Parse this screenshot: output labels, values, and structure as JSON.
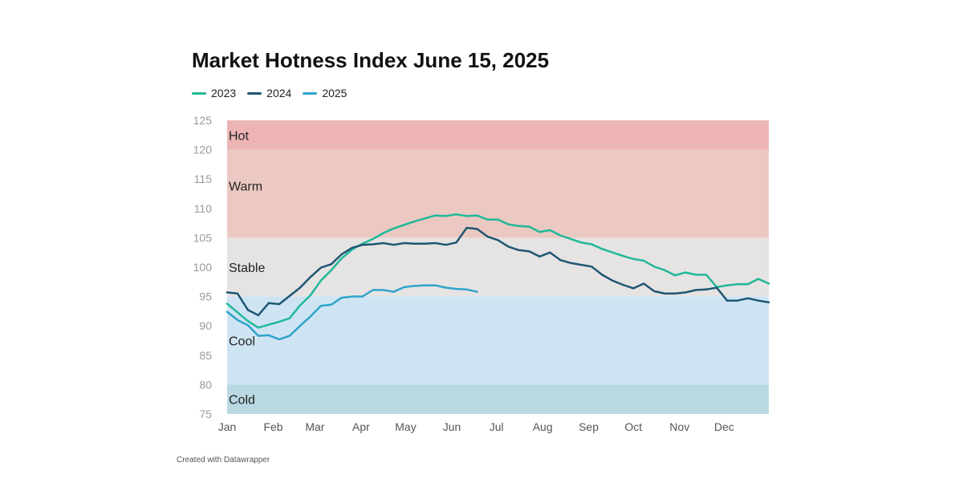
{
  "chart_data": {
    "type": "line",
    "title": "Market Hotness Index June 15, 2025",
    "credit": "Created with Datawrapper",
    "ylim": [
      75,
      125
    ],
    "y_ticks": [
      "125",
      "120",
      "115",
      "110",
      "105",
      "100",
      "95",
      "90",
      "85",
      "80",
      "75"
    ],
    "x_ticks": [
      "Jan",
      "Feb",
      "Mar",
      "Apr",
      "May",
      "Jun",
      "Jul",
      "Aug",
      "Sep",
      "Oct",
      "Nov",
      "Dec"
    ],
    "x_unit": "week of year",
    "xlim": [
      1,
      53
    ],
    "bands": [
      {
        "label": "Hot",
        "from": 120,
        "to": 125,
        "color": "#ecb5b4"
      },
      {
        "label": "Warm",
        "from": 105,
        "to": 120,
        "color": "#ebc9c2"
      },
      {
        "label": "Stable",
        "from": 95,
        "to": 105,
        "color": "#e6e3e3"
      },
      {
        "label": "Cool",
        "from": 80,
        "to": 95,
        "color": "#cfe4f2"
      },
      {
        "label": "Cold",
        "from": 75,
        "to": 80,
        "color": "#bad8e2"
      }
    ],
    "series": [
      {
        "name": "2023",
        "color": "#20b89a",
        "x": [
          1,
          2,
          3,
          4,
          5,
          6,
          7,
          8,
          9,
          10,
          11,
          12,
          13,
          14,
          15,
          16,
          17,
          18,
          19,
          20,
          21,
          22,
          23,
          24,
          25,
          26,
          27,
          28,
          29,
          30,
          31,
          32,
          33,
          34,
          35,
          36,
          37,
          38,
          39,
          40,
          41,
          42,
          43,
          44,
          45,
          46,
          47,
          48,
          49,
          50,
          51,
          52,
          53
        ],
        "values": [
          93.8,
          92.3,
          90.8,
          89.7,
          90.2,
          90.7,
          91.3,
          93.5,
          95.2,
          97.7,
          99.5,
          101.5,
          103,
          104,
          104.8,
          105.8,
          106.6,
          107.2,
          107.8,
          108.3,
          108.8,
          108.7,
          109,
          108.7,
          108.8,
          108.1,
          108.1,
          107.3,
          107,
          106.9,
          106,
          106.3,
          105.4,
          104.8,
          104.2,
          103.9,
          103.1,
          102.5,
          101.9,
          101.4,
          101.1,
          100.1,
          99.5,
          98.6,
          99.1,
          98.7,
          98.7,
          96.6,
          96.9,
          97.1,
          97.1,
          98,
          97.2
        ]
      },
      {
        "name": "2024",
        "color": "#1f5673",
        "x": [
          1,
          2,
          3,
          4,
          5,
          6,
          7,
          8,
          9,
          10,
          11,
          12,
          13,
          14,
          15,
          16,
          17,
          18,
          19,
          20,
          21,
          22,
          23,
          24,
          25,
          26,
          27,
          28,
          29,
          30,
          31,
          32,
          33,
          34,
          35,
          36,
          37,
          38,
          39,
          40,
          41,
          42,
          43,
          44,
          45,
          46,
          47,
          48,
          49,
          50,
          51,
          52,
          53
        ],
        "values": [
          95.7,
          95.5,
          92.7,
          91.8,
          93.9,
          93.7,
          95.1,
          96.5,
          98.3,
          99.9,
          100.5,
          102.2,
          103.3,
          103.8,
          103.9,
          104.1,
          103.8,
          104.1,
          104,
          104,
          104.1,
          103.8,
          104.2,
          106.7,
          106.5,
          105.2,
          104.6,
          103.5,
          102.9,
          102.7,
          101.8,
          102.5,
          101.2,
          100.7,
          100.4,
          100.1,
          98.7,
          97.7,
          97,
          96.4,
          97.2,
          95.9,
          95.5,
          95.5,
          95.7,
          96.1,
          96.2,
          96.5,
          94.3,
          94.3,
          94.7,
          94.3,
          94
        ]
      },
      {
        "name": "2025",
        "color": "#2ea3cc",
        "x": [
          1,
          2,
          3,
          4,
          5,
          6,
          7,
          8,
          9,
          10,
          11,
          12,
          13,
          14,
          15,
          16,
          17,
          18,
          19,
          20,
          21,
          22,
          23,
          24,
          25,
          26
        ],
        "values": [
          92.4,
          91,
          90.1,
          88.3,
          88.4,
          87.7,
          88.3,
          90,
          91.6,
          93.4,
          93.6,
          94.8,
          95,
          95,
          96.1,
          96.1,
          95.8,
          96.6,
          96.8,
          96.9,
          96.9,
          96.5,
          96.3,
          96.2,
          95.8,
          null
        ]
      }
    ]
  }
}
